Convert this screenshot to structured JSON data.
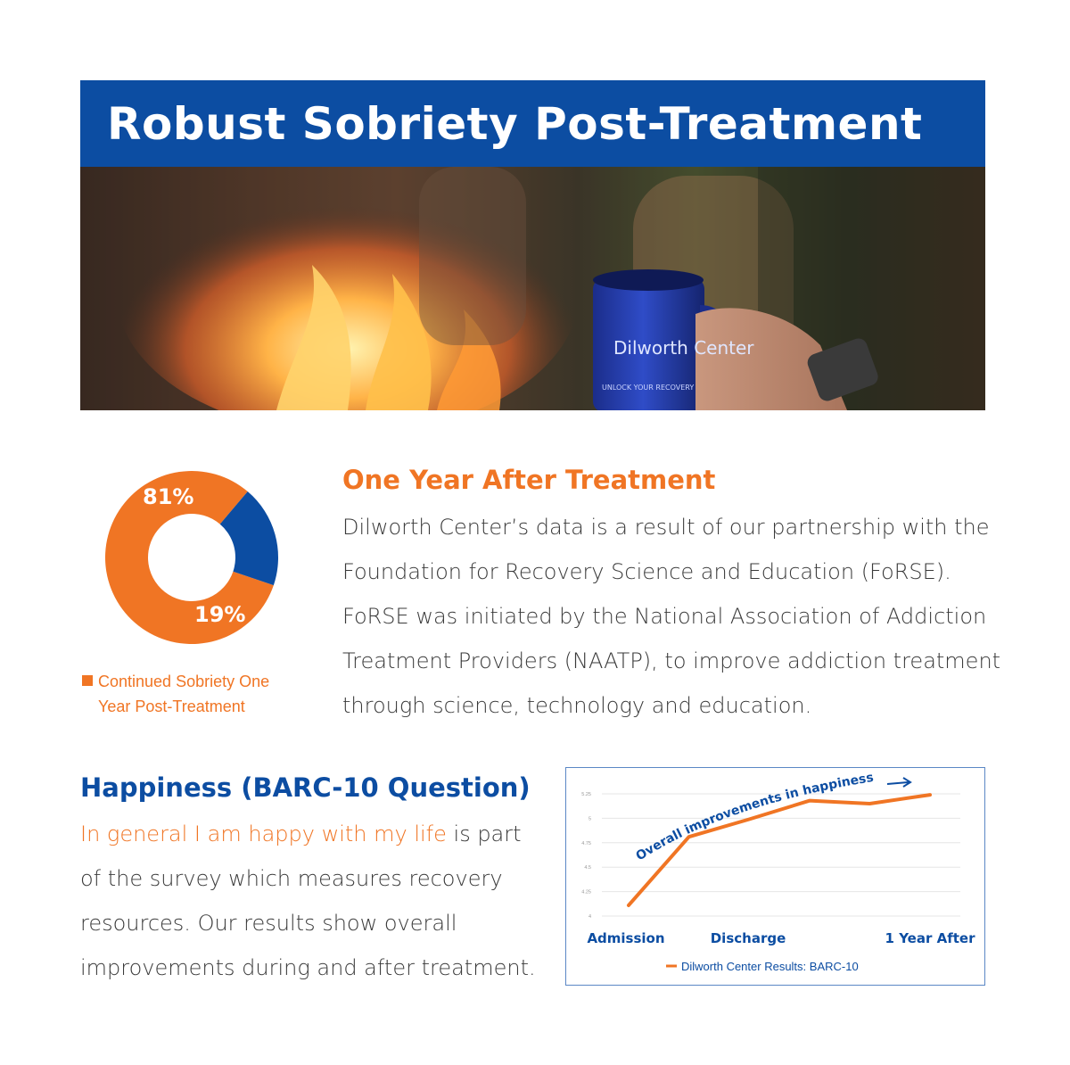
{
  "header": {
    "title": "Robust Sobriety Post-Treatment"
  },
  "photo": {
    "mug_brand": "Dilworth Center",
    "mug_tagline": "UNLOCK YOUR RECOVERY"
  },
  "colors": {
    "brand_blue": "#0c4da2",
    "accent_orange": "#f07524"
  },
  "section_one": {
    "title": "One Year After Treatment",
    "lines": [
      "Dilworth Center’s data is a result of our partnership with the",
      "Foundation for Recovery Science and Education (FoRSE).",
      "FoRSE was initiated by the National Association of Addiction",
      "Treatment Providers (NAATP), to improve addiction treatment",
      "through science, technology and education."
    ]
  },
  "section_two": {
    "title": "Happiness (BARC-10 Question)",
    "highlight": "In general I am happy with my life",
    "first_line_rest": " is part",
    "lines": [
      "of the survey which measures recovery",
      "resources. Our results show overall",
      "improvements during and after treatment."
    ]
  },
  "chart_data": [
    {
      "type": "pie",
      "style": "donut",
      "slices": [
        {
          "label": "81%",
          "value": 81,
          "color": "#f07524"
        },
        {
          "label": "19%",
          "value": 19,
          "color": "#0c4da2"
        }
      ],
      "legend": {
        "line1": "Continued Sobriety One",
        "line2": "Year Post-Treatment"
      }
    },
    {
      "type": "line",
      "x_labels_shown": [
        "Admission",
        "Discharge",
        "1 Year After"
      ],
      "x": [
        0,
        1,
        2,
        3,
        4,
        5
      ],
      "series": [
        {
          "name": "Dilworth Center Results: BARC-10",
          "color": "#f07524",
          "values": [
            4.11,
            4.81,
            4.99,
            5.18,
            5.15,
            5.24
          ]
        }
      ],
      "ylim": [
        4,
        5.25
      ],
      "yticks": [
        "4",
        "4.25",
        "4.5",
        "4.75",
        "5",
        "5.25"
      ],
      "annotation": "Overall improvements in happiness",
      "grid": true,
      "legend_position": "bottom"
    }
  ]
}
